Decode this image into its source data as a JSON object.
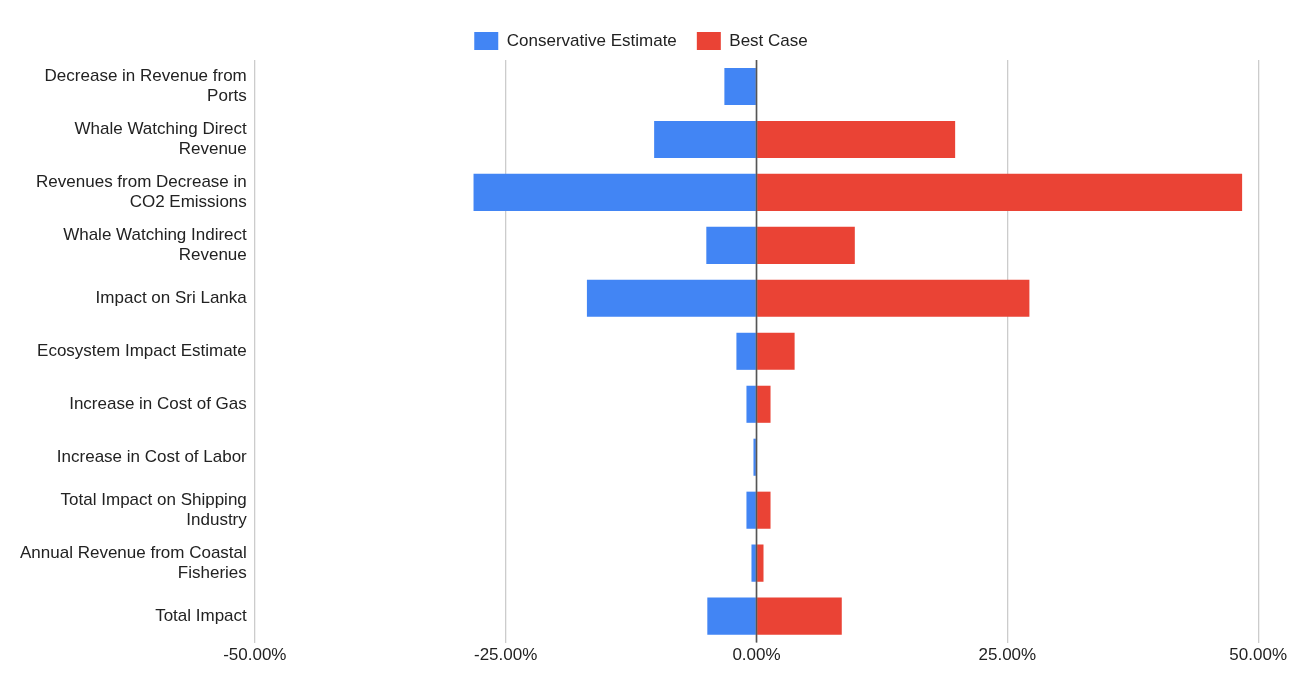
{
  "chart_data": {
    "type": "bar",
    "orientation": "horizontal",
    "stacked": true,
    "categories": [
      "Decrease in Revenue from Ports",
      "Whale Watching Direct Revenue",
      "Revenues from Decrease in CO2 Emissions",
      "Whale Watching Indirect Revenue",
      "Impact on Sri Lanka",
      "Ecosystem Impact Estimate",
      "Increase in Cost of Gas",
      "Increase in Cost of Labor",
      "Total Impact on Shipping Industry",
      "Annual Revenue from Coastal Fisheries",
      "Total Impact"
    ],
    "series": [
      {
        "name": "Conservative Estimate",
        "color": "#4285f4",
        "values": [
          -3.2,
          -10.2,
          -28.2,
          -5.0,
          -16.9,
          -2.0,
          -1.0,
          -0.3,
          -1.0,
          -0.5,
          -4.9
        ]
      },
      {
        "name": "Best Case",
        "color": "#ea4335",
        "values": [
          null,
          19.8,
          48.4,
          9.8,
          27.2,
          3.8,
          1.4,
          null,
          1.4,
          0.7,
          8.5
        ]
      }
    ],
    "xlim": [
      -50,
      50
    ],
    "xticks": [
      {
        "value": -50,
        "label": "-50.00%"
      },
      {
        "value": -25,
        "label": "-25.00%"
      },
      {
        "value": 0,
        "label": "0.00%"
      },
      {
        "value": 25,
        "label": "25.00%"
      },
      {
        "value": 50,
        "label": "50.00%"
      }
    ],
    "grid": "x",
    "legend": "top"
  }
}
